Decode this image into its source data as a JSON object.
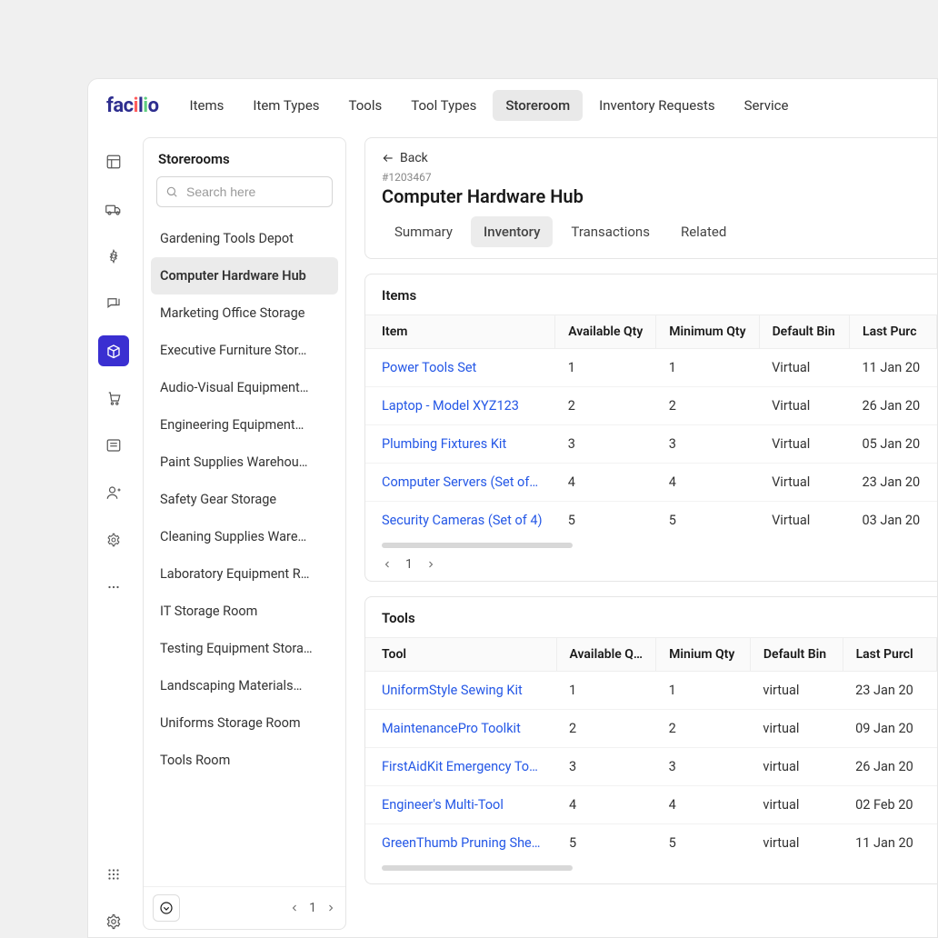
{
  "logo_text": "facilio",
  "nav": {
    "items": [
      "Items",
      "Item Types",
      "Tools",
      "Tool Types",
      "Storeroom",
      "Inventory Requests",
      "Service"
    ],
    "active_index": 4
  },
  "rail": {
    "active_index": 4
  },
  "side": {
    "title": "Storerooms",
    "search_placeholder": "Search here",
    "storerooms": [
      "Gardening Tools Depot",
      "Computer Hardware Hub",
      "Marketing Office Storage",
      "Executive Furniture Stor…",
      "Audio-Visual Equipment…",
      "Engineering Equipment…",
      "Paint Supplies Warehou…",
      "Safety Gear Storage",
      "Cleaning Supplies Ware…",
      "Laboratory Equipment R…",
      "IT Storage Room",
      "Testing Equipment Stora…",
      "Landscaping Materials…",
      "Uniforms Storage Room",
      "Tools Room"
    ],
    "active_storeroom_index": 1,
    "page": "1"
  },
  "detail": {
    "back_label": "Back",
    "record_id": "#1203467",
    "title": "Computer Hardware Hub",
    "tabs": [
      "Summary",
      "Inventory",
      "Transactions",
      "Related"
    ],
    "active_tab_index": 1
  },
  "items_section": {
    "title": "Items",
    "columns": [
      "Item",
      "Available Qty",
      "Minimum Qty",
      "Default Bin",
      "Last Purc"
    ],
    "rows": [
      {
        "item": "Power Tools Set",
        "aqty": "1",
        "mqty": "1",
        "bin": "Virtual",
        "date": "11 Jan 20"
      },
      {
        "item": "Laptop - Model XYZ123",
        "aqty": "2",
        "mqty": "2",
        "bin": "Virtual",
        "date": "26 Jan 20"
      },
      {
        "item": "Plumbing Fixtures Kit",
        "aqty": "3",
        "mqty": "3",
        "bin": "Virtual",
        "date": "05 Jan 20"
      },
      {
        "item": "Computer Servers (Set of…",
        "aqty": "4",
        "mqty": "4",
        "bin": "Virtual",
        "date": "23 Jan 20"
      },
      {
        "item": "Security Cameras (Set of 4)",
        "aqty": "5",
        "mqty": "5",
        "bin": "Virtual",
        "date": "03 Jan 20"
      }
    ],
    "page": "1"
  },
  "tools_section": {
    "title": "Tools",
    "columns": [
      "Tool",
      "Available Q…",
      "Minium Qty",
      "Default Bin",
      "Last Purcl"
    ],
    "rows": [
      {
        "item": "UniformStyle Sewing Kit",
        "aqty": "1",
        "mqty": "1",
        "bin": "virtual",
        "date": "23 Jan 20"
      },
      {
        "item": "MaintenancePro Toolkit",
        "aqty": "2",
        "mqty": "2",
        "bin": "virtual",
        "date": "09 Jan 20"
      },
      {
        "item": "FirstAidKit Emergency Tools",
        "aqty": "3",
        "mqty": "3",
        "bin": "virtual",
        "date": "26 Jan 20"
      },
      {
        "item": "Engineer's Multi-Tool",
        "aqty": "4",
        "mqty": "4",
        "bin": "virtual",
        "date": "02 Feb 20"
      },
      {
        "item": "GreenThumb Pruning Shears",
        "aqty": "5",
        "mqty": "5",
        "bin": "virtual",
        "date": "11 Jan 20"
      }
    ]
  },
  "colors": {
    "accent": "#3a2fd1",
    "link": "#2457e6",
    "border": "#e5e5e5"
  }
}
